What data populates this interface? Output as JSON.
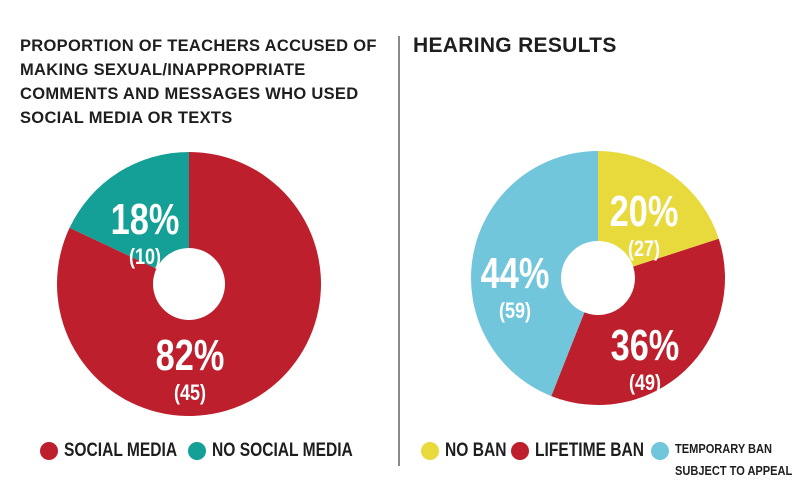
{
  "colors": {
    "red": "#be1f2d",
    "teal": "#14a096",
    "yellow": "#e8d93c",
    "lightblue": "#72c6db",
    "text": "#1e1e1e"
  },
  "chart_data": [
    {
      "type": "pie",
      "title": "PROPORTION OF TEACHERS ACCUSED OF MAKING SEXUAL/INAPPROPRIATE COMMENTS AND MESSAGES WHO USED SOCIAL MEDIA OR TEXTS",
      "donut": true,
      "slices": [
        {
          "label": "SOCIAL MEDIA",
          "value": 82,
          "count": 45,
          "pct_label": "82%",
          "count_label": "(45)",
          "color": "#be1f2d"
        },
        {
          "label": "NO SOCIAL MEDIA",
          "value": 18,
          "count": 10,
          "pct_label": "18%",
          "count_label": "(10)",
          "color": "#14a096"
        }
      ],
      "legend": [
        "SOCIAL MEDIA",
        "NO SOCIAL MEDIA"
      ],
      "legend_position": "bottom"
    },
    {
      "type": "pie",
      "title": "HEARING RESULTS",
      "donut": true,
      "slices": [
        {
          "label": "NO BAN",
          "value": 20,
          "count": 27,
          "pct_label": "20%",
          "count_label": "(27)",
          "color": "#e8d93c"
        },
        {
          "label": "LIFETIME BAN",
          "value": 36,
          "count": 49,
          "pct_label": "36%",
          "count_label": "(49)",
          "color": "#be1f2d"
        },
        {
          "label": "TEMPORARY BAN SUBJECT TO APPEAL",
          "value": 44,
          "count": 59,
          "pct_label": "44%",
          "count_label": "(59)",
          "color": "#72c6db"
        }
      ],
      "legend": [
        "NO BAN",
        "LIFETIME BAN",
        "TEMPORARY BAN SUBJECT TO APPEAL"
      ],
      "legend_position": "bottom"
    }
  ]
}
